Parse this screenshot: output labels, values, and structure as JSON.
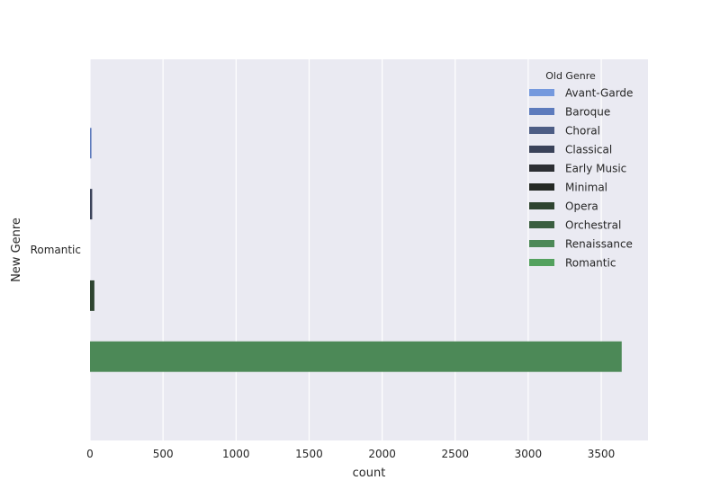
{
  "chart_data": {
    "type": "bar",
    "orientation": "horizontal",
    "xlabel": "count",
    "ylabel": "New Genre",
    "xlim": [
      0,
      3820
    ],
    "x_ticks": [
      0,
      500,
      1000,
      1500,
      2000,
      2500,
      3000,
      3500
    ],
    "grid": true,
    "categories": [
      "Romantic"
    ],
    "legend": {
      "title": "Old Genre",
      "placement": "top-right"
    },
    "series": [
      {
        "name": "Avant-Garde",
        "color": "#7599de",
        "values": [
          0
        ]
      },
      {
        "name": "Baroque",
        "color": "#5d7bbd",
        "values": [
          10
        ]
      },
      {
        "name": "Choral",
        "color": "#4d5d85",
        "values": [
          0
        ]
      },
      {
        "name": "Classical",
        "color": "#3a4259",
        "values": [
          15
        ]
      },
      {
        "name": "Early Music",
        "color": "#2c2e33",
        "values": [
          0
        ]
      },
      {
        "name": "Minimal",
        "color": "#242824",
        "values": [
          0
        ]
      },
      {
        "name": "Opera",
        "color": "#2e4430",
        "values": [
          30
        ]
      },
      {
        "name": "Orchestral",
        "color": "#3a5e40",
        "values": [
          0
        ]
      },
      {
        "name": "Renaissance",
        "color": "#4c8957",
        "values": [
          3640
        ]
      },
      {
        "name": "Romantic",
        "color": "#53a15e",
        "values": [
          0
        ]
      }
    ]
  }
}
